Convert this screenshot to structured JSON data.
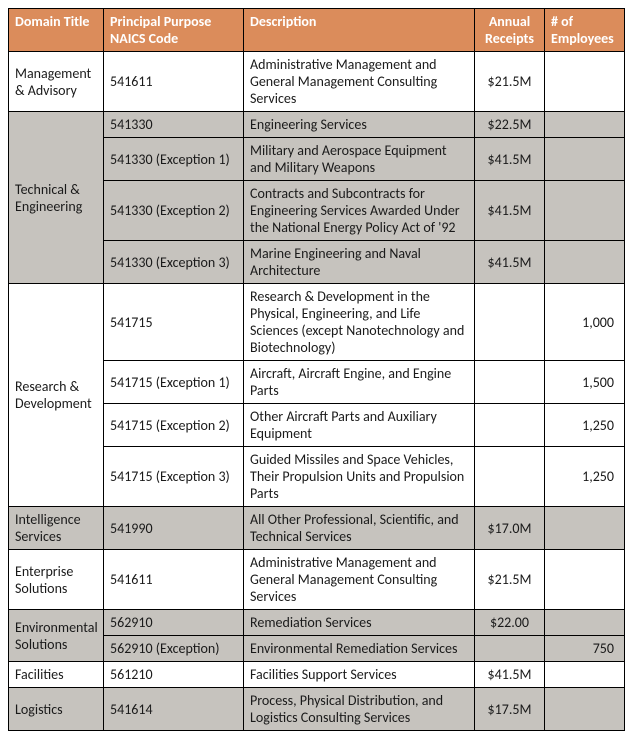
{
  "table": {
    "columns": {
      "domain": "Domain Title",
      "naics": "Principal Purpose NAICS Code",
      "desc": "Description",
      "receipts": "Annual Receipts",
      "emp": "# of Employees"
    },
    "colors": {
      "header_bg": "#db8c5b",
      "header_fg": "#ffffff",
      "shade_bg": "#c6c3be",
      "border": "#000000",
      "text": "#1a1a1a"
    },
    "font_size_pt": 11,
    "groups": [
      {
        "domain": "Management & Advisory",
        "shaded": false,
        "rows": [
          {
            "naics": "541611",
            "desc": "Administrative Management and General Management Consulting Services",
            "receipts": "$21.5M",
            "emp": ""
          }
        ]
      },
      {
        "domain": "Technical & Engineering",
        "shaded": true,
        "rows": [
          {
            "naics": "541330",
            "desc": "Engineering Services",
            "receipts": "$22.5M",
            "emp": ""
          },
          {
            "naics": "541330 (Exception 1)",
            "desc": "Military and Aerospace Equipment and Military Weapons",
            "receipts": "$41.5M",
            "emp": ""
          },
          {
            "naics": "541330 (Exception 2)",
            "desc": "Contracts and Subcontracts for Engineering Services Awarded Under the National Energy Policy Act of '92",
            "receipts": "$41.5M",
            "emp": ""
          },
          {
            "naics": "541330 (Exception 3)",
            "desc": "Marine Engineering and Naval Architecture",
            "receipts": "$41.5M",
            "emp": ""
          }
        ]
      },
      {
        "domain": "Research & Development",
        "shaded": false,
        "rows": [
          {
            "naics": "541715",
            "desc": "Research & Development in the Physical, Engineering, and Life Sciences (except Nanotechnology and Biotechnology)",
            "receipts": "",
            "emp": "1,000"
          },
          {
            "naics": "541715 (Exception 1)",
            "desc": "Aircraft, Aircraft Engine, and Engine Parts",
            "receipts": "",
            "emp": "1,500"
          },
          {
            "naics": "541715 (Exception 2)",
            "desc": "Other Aircraft Parts and Auxiliary Equipment",
            "receipts": "",
            "emp": "1,250"
          },
          {
            "naics": "541715 (Exception 3)",
            "desc": "Guided Missiles and Space Vehicles, Their Propulsion Units and Propulsion Parts",
            "receipts": "",
            "emp": "1,250"
          }
        ]
      },
      {
        "domain": "Intelligence Services",
        "shaded": true,
        "rows": [
          {
            "naics": "541990",
            "desc": "All Other Professional, Scientific, and Technical Services",
            "receipts": "$17.0M",
            "emp": ""
          }
        ]
      },
      {
        "domain": "Enterprise Solutions",
        "shaded": false,
        "rows": [
          {
            "naics": "541611",
            "desc": "Administrative Management and General Management Consulting Services",
            "receipts": "$21.5M",
            "emp": ""
          }
        ]
      },
      {
        "domain": "Environmental Solutions",
        "shaded": true,
        "rows": [
          {
            "naics": "562910",
            "desc": "Remediation Services",
            "receipts": "$22.00",
            "emp": ""
          },
          {
            "naics": "562910 (Exception)",
            "desc": "Environmental Remediation Services",
            "receipts": "",
            "emp": "750"
          }
        ]
      },
      {
        "domain": "Facilities",
        "shaded": false,
        "rows": [
          {
            "naics": "561210",
            "desc": "Facilities Support Services",
            "receipts": "$41.5M",
            "emp": ""
          }
        ]
      },
      {
        "domain": "Logistics",
        "shaded": true,
        "rows": [
          {
            "naics": "541614",
            "desc": "Process, Physical Distribution, and Logistics Consulting Services",
            "receipts": "$17.5M",
            "emp": ""
          }
        ]
      }
    ]
  }
}
